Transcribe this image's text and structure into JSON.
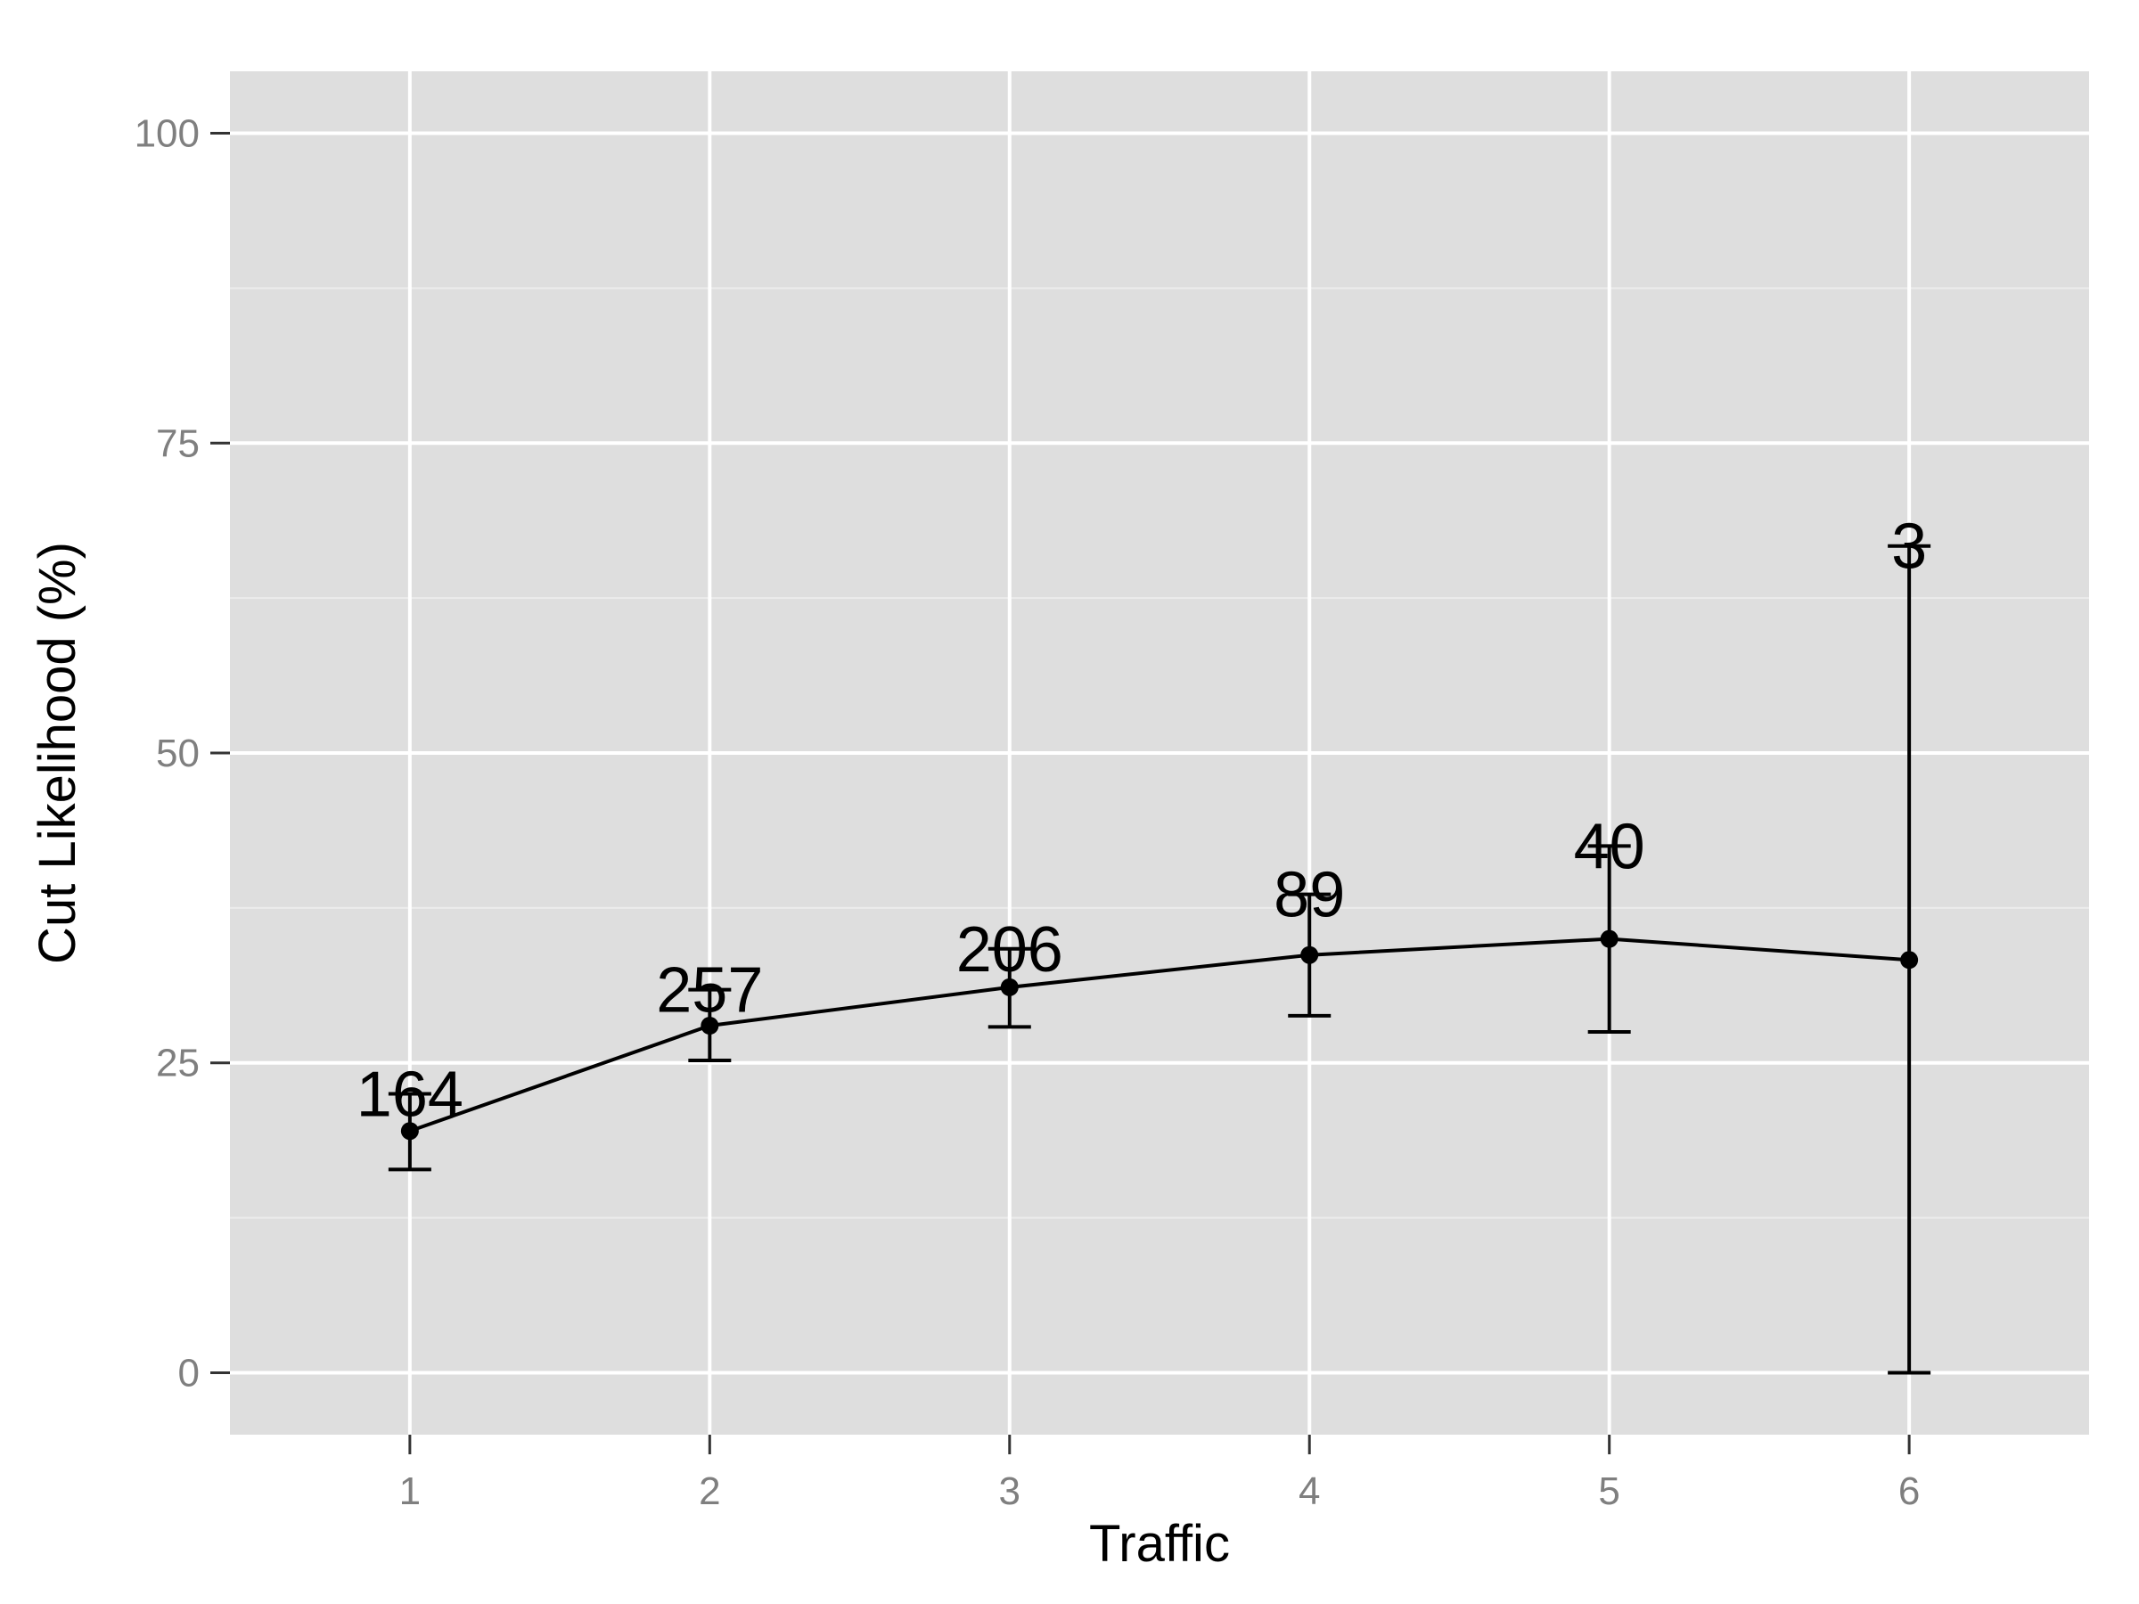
{
  "chart_data": {
    "type": "line",
    "title": "",
    "xlabel": "Traffic",
    "ylabel": "Cut Likelihood (%)",
    "x": [
      1,
      2,
      3,
      4,
      5,
      6
    ],
    "x_tick_labels": [
      "1",
      "2",
      "3",
      "4",
      "5",
      "6"
    ],
    "y_ticks": [
      0,
      25,
      50,
      75,
      100
    ],
    "y_tick_labels": [
      "0",
      "25",
      "50",
      "75",
      "100"
    ],
    "xlim": [
      0.4,
      6.6
    ],
    "ylim": [
      -5,
      105
    ],
    "grid": true,
    "legend": "none",
    "series": [
      {
        "values": [
          19.5,
          28.0,
          31.1,
          33.7,
          35.0,
          33.3
        ],
        "error_low": [
          16.4,
          25.2,
          27.9,
          28.8,
          27.5,
          0.0
        ],
        "error_high": [
          22.5,
          30.9,
          34.2,
          38.6,
          42.5,
          66.7
        ],
        "labels": [
          "164",
          "257",
          "206",
          "89",
          "40",
          "3"
        ]
      }
    ],
    "colors": {
      "panel_background": "#dedede",
      "grid_major": "#ffffff",
      "grid_minor": "#ececec",
      "line": "#000000",
      "tick_text": "#7f7f7f",
      "title_text": "#000000"
    }
  }
}
